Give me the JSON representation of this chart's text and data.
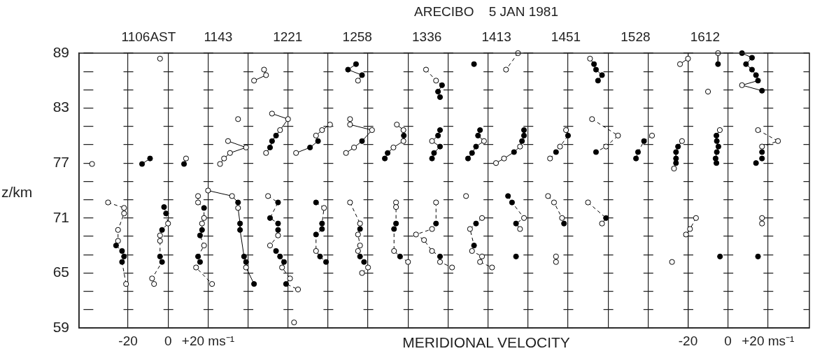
{
  "chart_data": {
    "type": "line",
    "title": "ARECIBO    5 JAN 1981",
    "xlabel": "MERIDIONAL VELOCITY",
    "ylabel": "z/km",
    "xlim": [
      -44.5,
      320.7
    ],
    "ylim": [
      59,
      89
    ],
    "xticks": [
      {
        "value": -20,
        "label": "-20"
      },
      {
        "value": 0,
        "label": "0"
      },
      {
        "value": 20,
        "label": "+20 ms⁻¹"
      },
      {
        "value": 40,
        "label": null
      },
      {
        "value": 60,
        "label": null
      },
      {
        "value": 80,
        "label": null
      },
      {
        "value": 100,
        "label": null
      },
      {
        "value": 120,
        "label": null
      },
      {
        "value": 140,
        "label": null
      },
      {
        "value": 160,
        "label": null
      },
      {
        "value": 180,
        "label": null
      },
      {
        "value": 200,
        "label": null
      },
      {
        "value": 220,
        "label": null
      },
      {
        "value": 240,
        "label": null
      },
      {
        "value": 260,
        "label": null
      }
    ],
    "x2lim": [
      -324.5,
      40.7
    ],
    "x2ticks": [
      -20,
      0,
      {
        "value": 20,
        "label": "+20 ms⁻¹"
      }
    ],
    "annotations": [
      "1106AST",
      "1143",
      "1221",
      "1258",
      "1336",
      "1413",
      "1451",
      "1528",
      "1612"
    ],
    "yticks": [
      59,
      {
        "value": 61,
        "label": null
      },
      {
        "value": 63,
        "label": null
      },
      65,
      {
        "value": 67,
        "label": null
      },
      {
        "value": 69,
        "label": null
      },
      71,
      {
        "value": 73,
        "label": null
      },
      {
        "value": 75,
        "label": null
      },
      77,
      {
        "value": 79,
        "label": null
      },
      {
        "value": 81,
        "label": null
      },
      83,
      {
        "value": 85,
        "label": null
      },
      {
        "value": 87,
        "label": null
      },
      89
    ],
    "grid": true,
    "legend": false,
    "marker": "circle",
    "series": [
      {
        "color": "#000000",
        "line_style": "solid",
        "x": [
          -38
        ],
        "values": [
          76.9
        ],
        "colors": [
          "#ffffff"
        ]
      },
      {
        "color": "#000000",
        "line_style": "solid",
        "x": [
          -13,
          -9
        ],
        "values": [
          76.9,
          77.5
        ],
        "colors": [
          "#000000",
          "#000000"
        ]
      },
      {
        "color": "#000000",
        "line_style": "solid",
        "x": [
          -4
        ],
        "values": [
          88.4
        ],
        "colors": [
          "#ffffff"
        ]
      },
      {
        "color": "#000000",
        "line_style": "solid",
        "x": [
          8,
          9
        ],
        "values": [
          76.9,
          77.5
        ],
        "colors": [
          "#000000",
          "#ffffff"
        ]
      },
      {
        "color": "#000000",
        "line_style": "solid",
        "x": [
          35
        ],
        "values": [
          81.8
        ],
        "colors": [
          "#ffffff"
        ]
      },
      {
        "color": "#000000",
        "line_style": "solid",
        "x": [
          30,
          39,
          31,
          28,
          26
        ],
        "values": [
          79.4,
          78.7,
          78.1,
          77.5,
          76.9
        ],
        "colors": [
          "#ffffff",
          "#ffffff",
          "#ffffff",
          "#ffffff",
          "#ffffff"
        ]
      },
      {
        "color": "#000000",
        "line_style": "solid",
        "x": [
          48,
          49,
          43
        ],
        "values": [
          87.2,
          86.6,
          86.0
        ],
        "colors": [
          "#ffffff",
          "#ffffff",
          "#ffffff"
        ]
      },
      {
        "color": "#000000",
        "line_style": "solid",
        "x": [
          52,
          60,
          56,
          54,
          52,
          51,
          49
        ],
        "values": [
          82.4,
          81.8,
          80.6,
          80.0,
          79.4,
          78.7,
          78.1
        ],
        "colors": [
          "#ffffff",
          "#ffffff",
          "#ffffff",
          "#000000",
          "#000000",
          "#000000",
          "#ffffff"
        ]
      },
      {
        "color": "#000000",
        "line_style": "solid",
        "x": [
          64,
          71,
          75,
          74,
          77,
          81
        ],
        "values": [
          78.1,
          78.7,
          79.4,
          80.0,
          80.6,
          81.2
        ],
        "colors": [
          "#ffffff",
          "#000000",
          "#000000",
          "#ffffff",
          "#ffffff",
          "#ffffff"
        ]
      },
      {
        "color": "#000000",
        "line_style": "solid",
        "x": [
          94,
          90,
          97,
          95
        ],
        "values": [
          87.8,
          87.2,
          86.6,
          86.0
        ],
        "colors": [
          "#000000",
          "#000000",
          "#000000",
          "#ffffff"
        ]
      },
      {
        "color": "#000000",
        "line_style": "solid",
        "x": [
          91,
          91,
          102,
          97,
          93,
          89
        ],
        "values": [
          81.8,
          81.2,
          80.6,
          79.4,
          78.7,
          78.1
        ],
        "colors": [
          "#ffffff",
          "#ffffff",
          "#ffffff",
          "#000000",
          "#ffffff",
          "#ffffff"
        ]
      },
      {
        "color": "#000000",
        "line_style": "solid",
        "x": [
          114.4,
          117.7,
          117.9,
          117.7,
          112.7,
          109.8,
          108.4
        ],
        "values": [
          81.2,
          80.6,
          80.0,
          79.4,
          78.7,
          78.1,
          77.5
        ],
        "colors": [
          "#ffffff",
          "#ffffff",
          "#000000",
          "#ffffff",
          "#ffffff",
          "#000000",
          "#000000"
        ]
      },
      {
        "color": "#000000",
        "line_style": "dashed",
        "x": [
          129,
          134,
          137,
          135,
          136
        ],
        "values": [
          87.2,
          86.0,
          85.5,
          84.8,
          84.2
        ],
        "colors": [
          "#ffffff",
          "#ffffff",
          "#000000",
          "#000000",
          "#000000"
        ]
      },
      {
        "color": "#000000",
        "line_style": "solid",
        "x": [
          136,
          135,
          132,
          136,
          133,
          132
        ],
        "values": [
          80.6,
          80.0,
          79.4,
          78.8,
          78.1,
          77.5
        ],
        "colors": [
          "#000000",
          "#000000",
          "#ffffff",
          "#000000",
          "#000000",
          "#000000"
        ]
      },
      {
        "color": "#000000",
        "line_style": "solid",
        "x": [
          153
        ],
        "values": [
          87.8
        ],
        "colors": [
          "#000000"
        ]
      },
      {
        "color": "#000000",
        "line_style": "solid",
        "x": [
          156,
          155,
          158,
          154,
          152,
          150
        ],
        "values": [
          80.6,
          80.0,
          79.4,
          78.8,
          78.1,
          77.5
        ],
        "colors": [
          "#000000",
          "#000000",
          "#ffffff",
          "#000000",
          "#000000",
          "#000000"
        ]
      },
      {
        "color": "#000000",
        "line_style": "dashed",
        "x": [
          175,
          169
        ],
        "values": [
          89.0,
          87.2
        ],
        "colors": [
          "#ffffff",
          "#ffffff"
        ]
      },
      {
        "color": "#000000",
        "line_style": "solid",
        "x": [
          178,
          178,
          177,
          176,
          173,
          168,
          164
        ],
        "values": [
          80.6,
          80.0,
          79.4,
          78.8,
          78.2,
          77.5,
          77.0
        ],
        "colors": [
          "#000000",
          "#000000",
          "#000000",
          "#ffffff",
          "#000000",
          "#ffffff",
          "#ffffff"
        ]
      },
      {
        "color": "#000000",
        "line_style": "dashed",
        "x": [
          199,
          200,
          196,
          194,
          191
        ],
        "values": [
          80.6,
          80.0,
          78.8,
          78.2,
          77.5
        ],
        "colors": [
          "#ffffff",
          "#000000",
          "#ffffff",
          "#000000",
          "#ffffff"
        ]
      },
      {
        "color": "#000000",
        "line_style": "solid",
        "x": [
          211,
          213,
          214,
          217,
          215
        ],
        "values": [
          88.4,
          87.8,
          87.2,
          86.6,
          86.0
        ],
        "colors": [
          "#ffffff",
          "#000000",
          "#000000",
          "#000000",
          "#000000"
        ]
      },
      {
        "color": "#000000",
        "line_style": "dashed",
        "x": [
          212,
          225,
          219,
          214
        ],
        "values": [
          81.8,
          80.0,
          78.8,
          78.2
        ],
        "colors": [
          "#ffffff",
          "#ffffff",
          "#ffffff",
          "#000000"
        ]
      },
      {
        "color": "#000000",
        "line_style": "dashed",
        "x": [
          242,
          238,
          235,
          234
        ],
        "values": [
          80.0,
          79.4,
          78.2,
          77.5
        ],
        "colors": [
          "#ffffff",
          "#000000",
          "#000000",
          "#000000"
        ]
      },
      {
        "color": "#000000",
        "line_style": "solid",
        "axis": "x2",
        "x": [
          -20,
          -24
        ],
        "values": [
          88.4,
          87.8
        ],
        "colors": [
          "#ffffff",
          "#ffffff"
        ]
      },
      {
        "color": "#000000",
        "line_style": "solid",
        "axis": "x2",
        "x": [
          -23,
          -25,
          -26,
          -26,
          -26,
          -27
        ],
        "values": [
          79.4,
          78.8,
          78.2,
          77.5,
          77.0,
          76.4
        ],
        "colors": [
          "#ffffff",
          "#000000",
          "#000000",
          "#000000",
          "#000000",
          "#ffffff"
        ]
      },
      {
        "color": "#000000",
        "line_style": "solid",
        "axis": "x2",
        "x": [
          -10
        ],
        "values": [
          84.8
        ],
        "colors": [
          "#ffffff"
        ]
      },
      {
        "color": "#000000",
        "line_style": "solid",
        "axis": "x2",
        "x": [
          -5,
          -5
        ],
        "values": [
          89.0,
          87.8
        ],
        "colors": [
          "#ffffff",
          "#000000"
        ]
      },
      {
        "color": "#000000",
        "line_style": "solid",
        "axis": "x2",
        "x": [
          -4.1,
          -5.8,
          -5.6,
          -4.8,
          -5.6,
          -6.2,
          -5.8
        ],
        "values": [
          80.6,
          80.0,
          79.4,
          78.8,
          78.2,
          77.5,
          77.0
        ],
        "colors": [
          "#ffffff",
          "#000000",
          "#000000",
          "#000000",
          "#000000",
          "#000000",
          "#000000"
        ]
      },
      {
        "color": "#000000",
        "line_style": "solid",
        "axis": "x2",
        "x": [
          7,
          12,
          9,
          12,
          14,
          15,
          7,
          17
        ],
        "values": [
          89.0,
          88.5,
          87.8,
          87.2,
          86.6,
          86.0,
          85.5,
          84.9
        ],
        "colors": [
          "#000000",
          "#000000",
          "#000000",
          "#000000",
          "#000000",
          "#000000",
          "#ffffff",
          "#000000"
        ]
      },
      {
        "color": "#000000",
        "line_style": "dashed",
        "axis": "x2",
        "x": [
          15,
          25,
          17,
          17,
          17,
          14
        ],
        "values": [
          80.6,
          79.4,
          78.8,
          78.2,
          77.5,
          77.0
        ],
        "colors": [
          "#ffffff",
          "#ffffff",
          "#ffffff",
          "#000000",
          "#000000",
          "#000000"
        ]
      },
      {
        "color": "#000000",
        "line_style": "dashed",
        "x": [
          -30,
          -22,
          -22,
          -25,
          -25,
          -26,
          -23,
          -22,
          -23,
          -21
        ],
        "values": [
          72.7,
          72.1,
          71.5,
          69.7,
          68.5,
          68.0,
          67.4,
          66.8,
          66.2,
          63.8
        ],
        "colors": [
          "#ffffff",
          "#ffffff",
          "#ffffff",
          "#ffffff",
          "#ffffff",
          "#000000",
          "#000000",
          "#000000",
          "#000000",
          "#ffffff"
        ]
      },
      {
        "color": "#000000",
        "line_style": "dashed",
        "x": [
          -2,
          -1,
          0,
          -3,
          -4,
          -4,
          -4,
          -3,
          -8,
          -7
        ],
        "values": [
          72.2,
          71.5,
          70.4,
          69.7,
          69.1,
          68.5,
          66.8,
          66.2,
          64.4,
          63.8
        ],
        "colors": [
          "#000000",
          "#000000",
          "#ffffff",
          "#000000",
          "#ffffff",
          "#ffffff",
          "#000000",
          "#000000",
          "#ffffff",
          "#ffffff"
        ]
      },
      {
        "color": "#000000",
        "line_style": "dashed",
        "x": [
          15,
          15,
          18,
          18,
          17,
          17,
          16,
          18,
          15,
          16,
          14,
          22
        ],
        "values": [
          73.4,
          72.7,
          72.1,
          71.0,
          70.4,
          69.7,
          69.1,
          68.0,
          66.8,
          66.2,
          65.6,
          63.8
        ],
        "colors": [
          "#ffffff",
          "#ffffff",
          "#000000",
          "#ffffff",
          "#ffffff",
          "#000000",
          "#000000",
          "#ffffff",
          "#000000",
          "#000000",
          "#ffffff",
          "#ffffff"
        ]
      },
      {
        "color": "#000000",
        "line_style": "solid",
        "x": [
          20,
          32,
          35,
          35,
          36,
          36,
          38,
          39,
          39,
          43
        ],
        "values": [
          74.0,
          73.4,
          72.7,
          72.1,
          70.4,
          69.7,
          66.8,
          66.2,
          65.6,
          63.8
        ],
        "colors": [
          "#ffffff",
          "#ffffff",
          "#000000",
          "#ffffff",
          "#000000",
          "#000000",
          "#000000",
          "#000000",
          "#ffffff",
          "#000000"
        ]
      },
      {
        "color": "#000000",
        "line_style": "dashed",
        "x": [
          50,
          55,
          51,
          55,
          55,
          55,
          51,
          54,
          56,
          58,
          57,
          61,
          59,
          65
        ],
        "values": [
          73.4,
          72.7,
          71.0,
          70.4,
          69.7,
          69.1,
          68.0,
          67.4,
          66.8,
          66.2,
          65.6,
          64.4,
          63.8,
          63.2
        ],
        "colors": [
          "#ffffff",
          "#000000",
          "#000000",
          "#000000",
          "#000000",
          "#ffffff",
          "#ffffff",
          "#000000",
          "#000000",
          "#000000",
          "#ffffff",
          "#ffffff",
          "#000000",
          "#ffffff"
        ]
      },
      {
        "color": "#000000",
        "line_style": "solid",
        "x": [
          63
        ],
        "values": [
          59.6
        ],
        "colors": [
          "#ffffff"
        ]
      },
      {
        "color": "#000000",
        "line_style": "dashed",
        "x": [
          74,
          78,
          77,
          77,
          74,
          74,
          76,
          79
        ],
        "values": [
          72.7,
          72.1,
          70.4,
          69.8,
          69.2,
          67.4,
          66.8,
          66.2
        ],
        "colors": [
          "#000000",
          "#ffffff",
          "#000000",
          "#000000",
          "#000000",
          "#ffffff",
          "#000000",
          "#000000"
        ]
      },
      {
        "color": "#000000",
        "line_style": "dashed",
        "x": [
          91,
          96,
          96,
          95,
          96,
          95,
          96,
          98,
          100,
          97
        ],
        "values": [
          72.7,
          70.4,
          69.8,
          69.2,
          68.0,
          67.4,
          66.8,
          66.2,
          65.6,
          65.0
        ],
        "colors": [
          "#ffffff",
          "#ffffff",
          "#000000",
          "#ffffff",
          "#ffffff",
          "#ffffff",
          "#000000",
          "#000000",
          "#ffffff",
          "#ffffff"
        ]
      },
      {
        "color": "#000000",
        "line_style": "dashed",
        "x": [
          114,
          114,
          114,
          113,
          113,
          116,
          120
        ],
        "values": [
          72.7,
          72.2,
          70.4,
          69.8,
          67.4,
          66.8,
          66.2
        ],
        "colors": [
          "#ffffff",
          "#ffffff",
          "#000000",
          "#000000",
          "#ffffff",
          "#000000",
          "#ffffff"
        ]
      },
      {
        "color": "#000000",
        "line_style": "dashed",
        "x": [
          134,
          134,
          132,
          124,
          128,
          132,
          136,
          136,
          142
        ],
        "values": [
          72.7,
          70.4,
          69.8,
          69.2,
          68.6,
          67.4,
          66.8,
          66.2,
          65.6
        ],
        "colors": [
          "#ffffff",
          "#000000",
          "#ffffff",
          "#ffffff",
          "#ffffff",
          "#ffffff",
          "#000000",
          "#ffffff",
          "#ffffff"
        ]
      },
      {
        "color": "#000000",
        "line_style": "solid",
        "x": [
          149
        ],
        "values": [
          73.4
        ],
        "colors": [
          "#ffffff"
        ]
      },
      {
        "color": "#000000",
        "line_style": "dashed",
        "x": [
          157,
          154,
          151,
          153,
          152,
          157,
          156,
          162
        ],
        "values": [
          71.0,
          70.4,
          69.8,
          68.0,
          67.4,
          66.8,
          66.2,
          65.6
        ],
        "colors": [
          "#ffffff",
          "#000000",
          "#ffffff",
          "#000000",
          "#ffffff",
          "#ffffff",
          "#ffffff",
          "#ffffff"
        ]
      },
      {
        "color": "#000000",
        "line_style": "dashed",
        "x": [
          170,
          172,
          178,
          174,
          176
        ],
        "values": [
          73.4,
          72.7,
          71.0,
          70.4,
          69.8
        ],
        "colors": [
          "#000000",
          "#000000",
          "#ffffff",
          "#000000",
          "#ffffff"
        ]
      },
      {
        "color": "#000000",
        "line_style": "solid",
        "x": [
          174
        ],
        "values": [
          66.8
        ],
        "colors": [
          "#000000"
        ]
      },
      {
        "color": "#000000",
        "line_style": "dashed",
        "x": [
          190,
          193,
          197,
          198
        ],
        "values": [
          73.4,
          72.7,
          71.0,
          70.4
        ],
        "colors": [
          "#ffffff",
          "#ffffff",
          "#ffffff",
          "#000000"
        ]
      },
      {
        "color": "#000000",
        "line_style": "dashed",
        "x": [
          194,
          194
        ],
        "values": [
          66.8,
          66.2
        ],
        "colors": [
          "#ffffff",
          "#ffffff"
        ]
      },
      {
        "color": "#000000",
        "line_style": "dashed",
        "x": [
          210,
          219,
          217
        ],
        "values": [
          72.7,
          71.0,
          70.4
        ],
        "colors": [
          "#ffffff",
          "#000000",
          "#ffffff"
        ]
      },
      {
        "color": "#000000",
        "line_style": "dashed",
        "axis": "x2",
        "x": [
          -16,
          -19,
          -21
        ],
        "values": [
          71.0,
          69.8,
          69.2
        ],
        "colors": [
          "#ffffff",
          "#ffffff",
          "#ffffff"
        ]
      },
      {
        "color": "#000000",
        "line_style": "solid",
        "axis": "x2",
        "x": [
          -28
        ],
        "values": [
          66.2
        ],
        "colors": [
          "#ffffff"
        ]
      },
      {
        "color": "#000000",
        "line_style": "solid",
        "axis": "x2",
        "x": [
          -4
        ],
        "values": [
          66.8
        ],
        "colors": [
          "#000000"
        ]
      },
      {
        "color": "#000000",
        "line_style": "dashed",
        "axis": "x2",
        "x": [
          17,
          17
        ],
        "values": [
          71.0,
          70.4
        ],
        "colors": [
          "#ffffff",
          "#ffffff"
        ]
      },
      {
        "color": "#000000",
        "line_style": "solid",
        "axis": "x2",
        "x": [
          15
        ],
        "values": [
          66.8
        ],
        "colors": [
          "#000000"
        ]
      }
    ]
  }
}
